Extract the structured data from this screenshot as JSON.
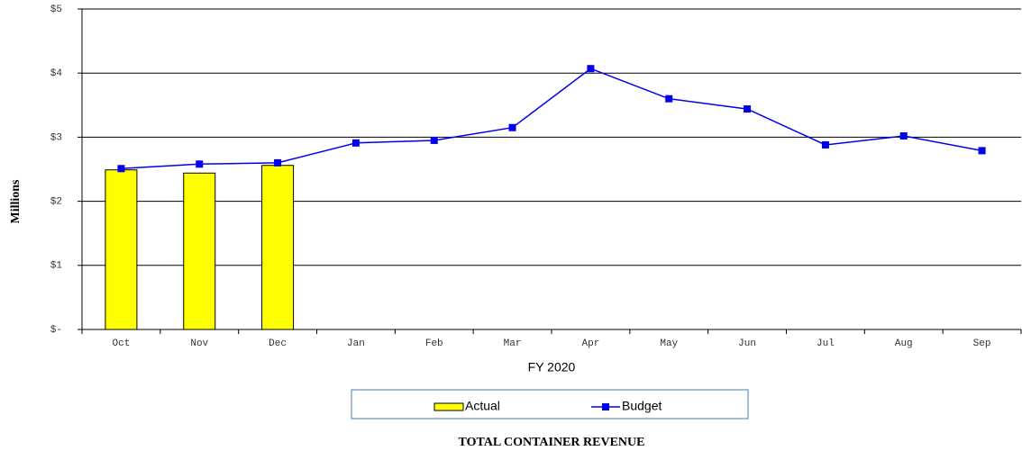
{
  "chart_data": {
    "type": "bar",
    "title": "TOTAL CONTAINER REVENUE",
    "x_label": "FY 2020",
    "y_label": "Millions",
    "categories": [
      "Oct",
      "Nov",
      "Dec",
      "Jan",
      "Feb",
      "Mar",
      "Apr",
      "May",
      "Jun",
      "Jul",
      "Aug",
      "Sep"
    ],
    "series": [
      {
        "name": "Actual",
        "type": "bar",
        "color": "#ffff00",
        "values": [
          2.49,
          2.44,
          2.56,
          null,
          null,
          null,
          null,
          null,
          null,
          null,
          null,
          null
        ]
      },
      {
        "name": "Budget",
        "type": "line",
        "color": "#0000ee",
        "values": [
          2.51,
          2.58,
          2.6,
          2.91,
          2.95,
          3.15,
          4.07,
          3.6,
          3.44,
          2.88,
          3.02,
          2.79
        ]
      }
    ],
    "ylim": [
      0,
      5
    ],
    "yticks": [
      {
        "value": 0,
        "label": "$-"
      },
      {
        "value": 1,
        "label": "$1"
      },
      {
        "value": 2,
        "label": "$2"
      },
      {
        "value": 3,
        "label": "$3"
      },
      {
        "value": 4,
        "label": "$4"
      },
      {
        "value": 5,
        "label": "$5"
      }
    ],
    "grid": true,
    "legend": "bottom"
  }
}
